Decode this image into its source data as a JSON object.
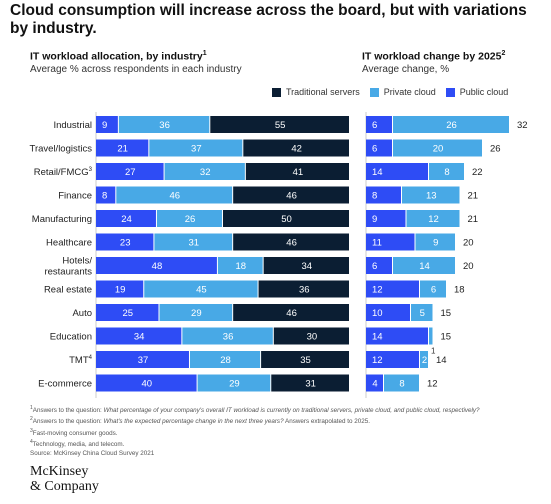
{
  "title": "Cloud consumption will increase across the board, but with variations by industry.",
  "left_panel": {
    "title": "IT workload allocation, by industry",
    "title_sup": "1",
    "subtitle": "Average % across respondents in each industry"
  },
  "right_panel": {
    "title": "IT workload change by 2025",
    "title_sup": "2",
    "subtitle": "Average change, %"
  },
  "legend": [
    {
      "label": "Traditional servers",
      "color": "#0b1e33"
    },
    {
      "label": "Private cloud",
      "color": "#48a9e6"
    },
    {
      "label": "Public cloud",
      "color": "#2e4cf5"
    }
  ],
  "colors": {
    "traditional": "#0b1e33",
    "private": "#48a9e6",
    "public": "#2e4cf5"
  },
  "chart_data": [
    {
      "type": "bar",
      "orientation": "horizontal",
      "stacked": true,
      "title": "IT workload allocation, by industry",
      "categories": [
        "Industrial",
        "Travel/logistics",
        "Retail/FMCG",
        "Finance",
        "Manufacturing",
        "Healthcare",
        "Hotels/ restaurants",
        "Real estate",
        "Auto",
        "Education",
        "TMT",
        "E-commerce"
      ],
      "category_sup": [
        "",
        "",
        "3",
        "",
        "",
        "",
        "",
        "",
        "",
        "",
        "4",
        ""
      ],
      "series": [
        {
          "name": "Public cloud",
          "values": [
            9,
            21,
            27,
            8,
            24,
            23,
            48,
            19,
            25,
            34,
            37,
            40
          ]
        },
        {
          "name": "Private cloud",
          "values": [
            36,
            37,
            32,
            46,
            26,
            31,
            18,
            45,
            29,
            36,
            28,
            29
          ]
        },
        {
          "name": "Traditional servers",
          "values": [
            55,
            42,
            41,
            46,
            50,
            46,
            34,
            36,
            46,
            30,
            35,
            31
          ]
        }
      ],
      "xlim": [
        0,
        100
      ],
      "legend_position": "top-right"
    },
    {
      "type": "bar",
      "orientation": "horizontal",
      "stacked": true,
      "title": "IT workload change by 2025",
      "categories": [
        "Industrial",
        "Travel/logistics",
        "Retail/FMCG",
        "Finance",
        "Manufacturing",
        "Healthcare",
        "Hotels/ restaurants",
        "Real estate",
        "Auto",
        "Education",
        "TMT",
        "E-commerce"
      ],
      "series": [
        {
          "name": "Public cloud",
          "values": [
            6,
            6,
            14,
            8,
            9,
            11,
            6,
            12,
            10,
            14,
            12,
            4
          ]
        },
        {
          "name": "Private cloud",
          "values": [
            26,
            20,
            8,
            13,
            12,
            9,
            14,
            6,
            5,
            1,
            2,
            8
          ]
        }
      ],
      "totals": [
        32,
        26,
        22,
        21,
        21,
        20,
        20,
        18,
        15,
        15,
        14,
        12
      ],
      "xlim": [
        0,
        32
      ]
    }
  ],
  "footnotes": [
    {
      "sup": "1",
      "text": "Answers to the question: ",
      "italic": "What percentage of your company's overall IT workload is currently on traditional servers, private cloud, and public cloud, respectively?"
    },
    {
      "sup": "2",
      "text": "Answers to the question: ",
      "italic": "What's the expected percentage change in the next three years?",
      "after": " Answers extrapolated to 2025."
    },
    {
      "sup": "3",
      "text": "Fast-moving consumer goods."
    },
    {
      "sup": "4",
      "text": "Technology, media, and telecom."
    }
  ],
  "source": "Source: McKinsey China Cloud Survey 2021",
  "logo": {
    "line1": "McKinsey",
    "line2": "& Company"
  }
}
